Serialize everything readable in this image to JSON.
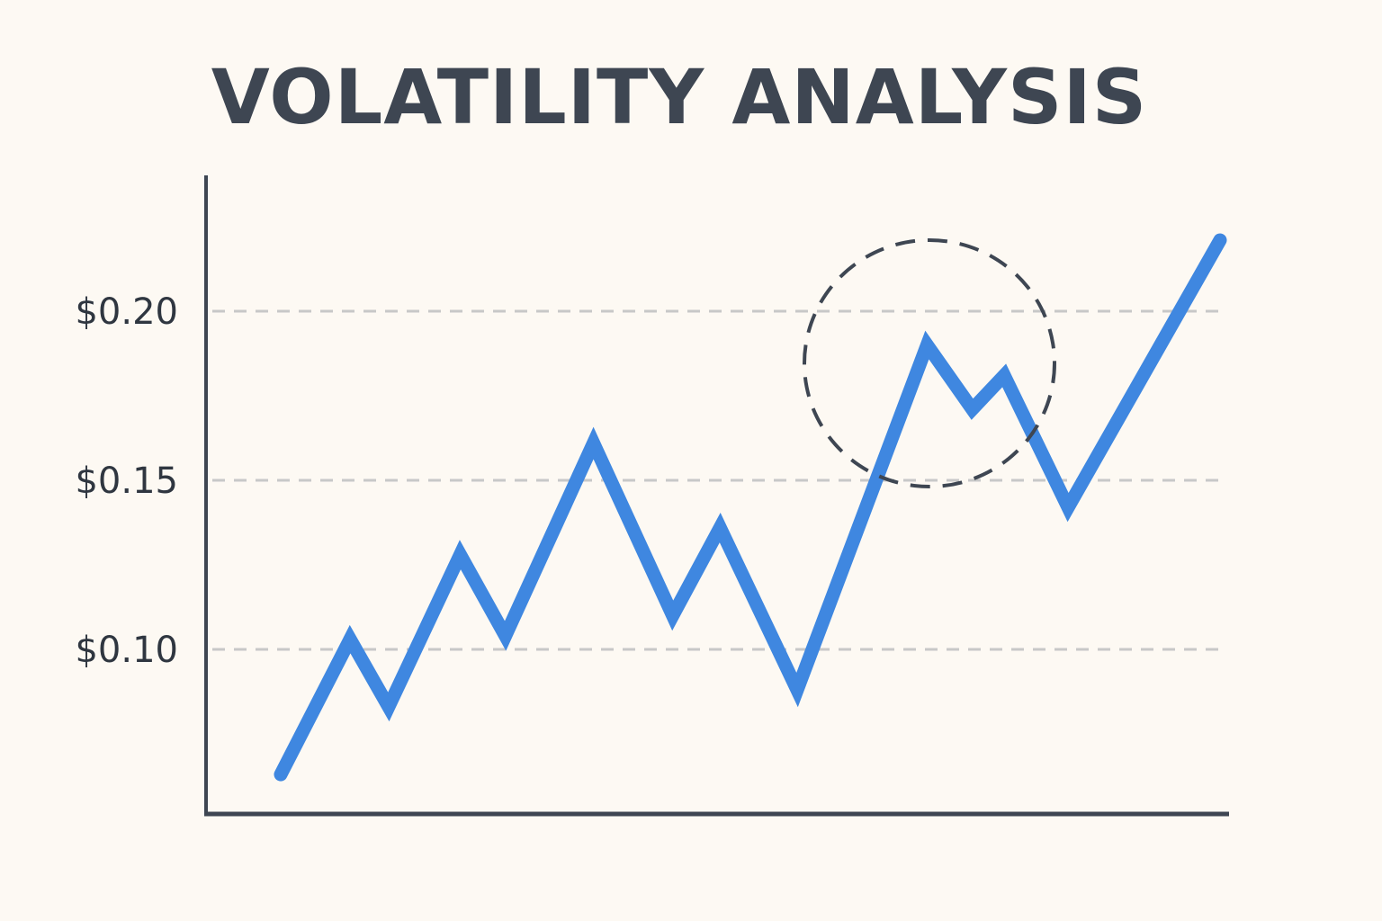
{
  "chart_data": {
    "type": "line",
    "title": "VOLATILITY ANALYSIS",
    "xlabel": "",
    "ylabel": "",
    "ylim": [
      0.055,
      0.235
    ],
    "yticks": [
      {
        "value": 0.1,
        "label": "$0.10"
      },
      {
        "value": 0.15,
        "label": "$0.15"
      },
      {
        "value": 0.2,
        "label": "$0.20"
      }
    ],
    "grid": "horizontal dashed at y ticks",
    "x": [
      0,
      1,
      2,
      3,
      4,
      5,
      6,
      7,
      8,
      9,
      10,
      11,
      12,
      13,
      14
    ],
    "series": [
      {
        "values": [
          0.063,
          0.103,
          0.083,
          0.128,
          0.104,
          0.161,
          0.11,
          0.136,
          0.088,
          0.19,
          0.171,
          0.181,
          0.142,
          0.221
        ],
        "x": [
          0.0,
          0.63,
          0.98,
          1.63,
          2.04,
          2.84,
          3.56,
          3.99,
          4.69,
          5.87,
          6.28,
          6.57,
          7.15,
          8.53
        ]
      }
    ],
    "annotations": [
      {
        "type": "dashed-circle",
        "highlight": "peak near x 5.87–6.57"
      }
    ]
  },
  "colors": {
    "background": "#fdf9f3",
    "line": "#3f87e0",
    "axis": "#3e4652",
    "grid": "#c8c8c8",
    "annotation": "#3e4652"
  }
}
